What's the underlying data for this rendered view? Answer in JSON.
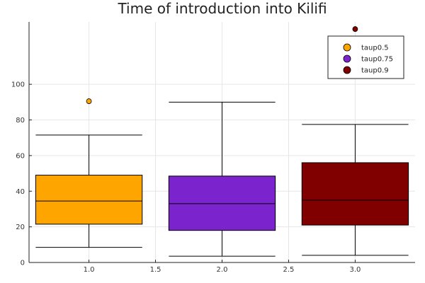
{
  "chart_data": {
    "type": "box",
    "title": "Time of introduction into Kilifi",
    "xlabel": "",
    "ylabel": "",
    "xlim": [
      0.55,
      3.45
    ],
    "ylim": [
      0,
      135
    ],
    "xticks": [
      1.0,
      1.5,
      2.0,
      2.5,
      3.0
    ],
    "xtick_labels": [
      "1.0",
      "1.5",
      "2.0",
      "2.5",
      "3.0"
    ],
    "yticks": [
      0,
      20,
      40,
      60,
      80,
      100
    ],
    "ytick_labels": [
      "0",
      "20",
      "40",
      "60",
      "80",
      "100"
    ],
    "grid": true,
    "legend_position": "top-right",
    "series": [
      {
        "name": "taup0.5",
        "x": 1,
        "whisker_low": 8.5,
        "q1": 21.5,
        "median": 34.5,
        "q3": 49,
        "whisker_high": 71.5,
        "outliers": [
          90.5
        ],
        "color": "#FFA500"
      },
      {
        "name": "taup0.75",
        "x": 2,
        "whisker_low": 3.5,
        "q1": 18,
        "median": 33,
        "q3": 48.5,
        "whisker_high": 90,
        "outliers": [],
        "color": "#7B24CE"
      },
      {
        "name": "taup0.9",
        "x": 3,
        "whisker_low": 4,
        "q1": 21,
        "median": 35,
        "q3": 56,
        "whisker_high": 77.5,
        "outliers": [
          131
        ],
        "color": "#800000"
      }
    ]
  }
}
